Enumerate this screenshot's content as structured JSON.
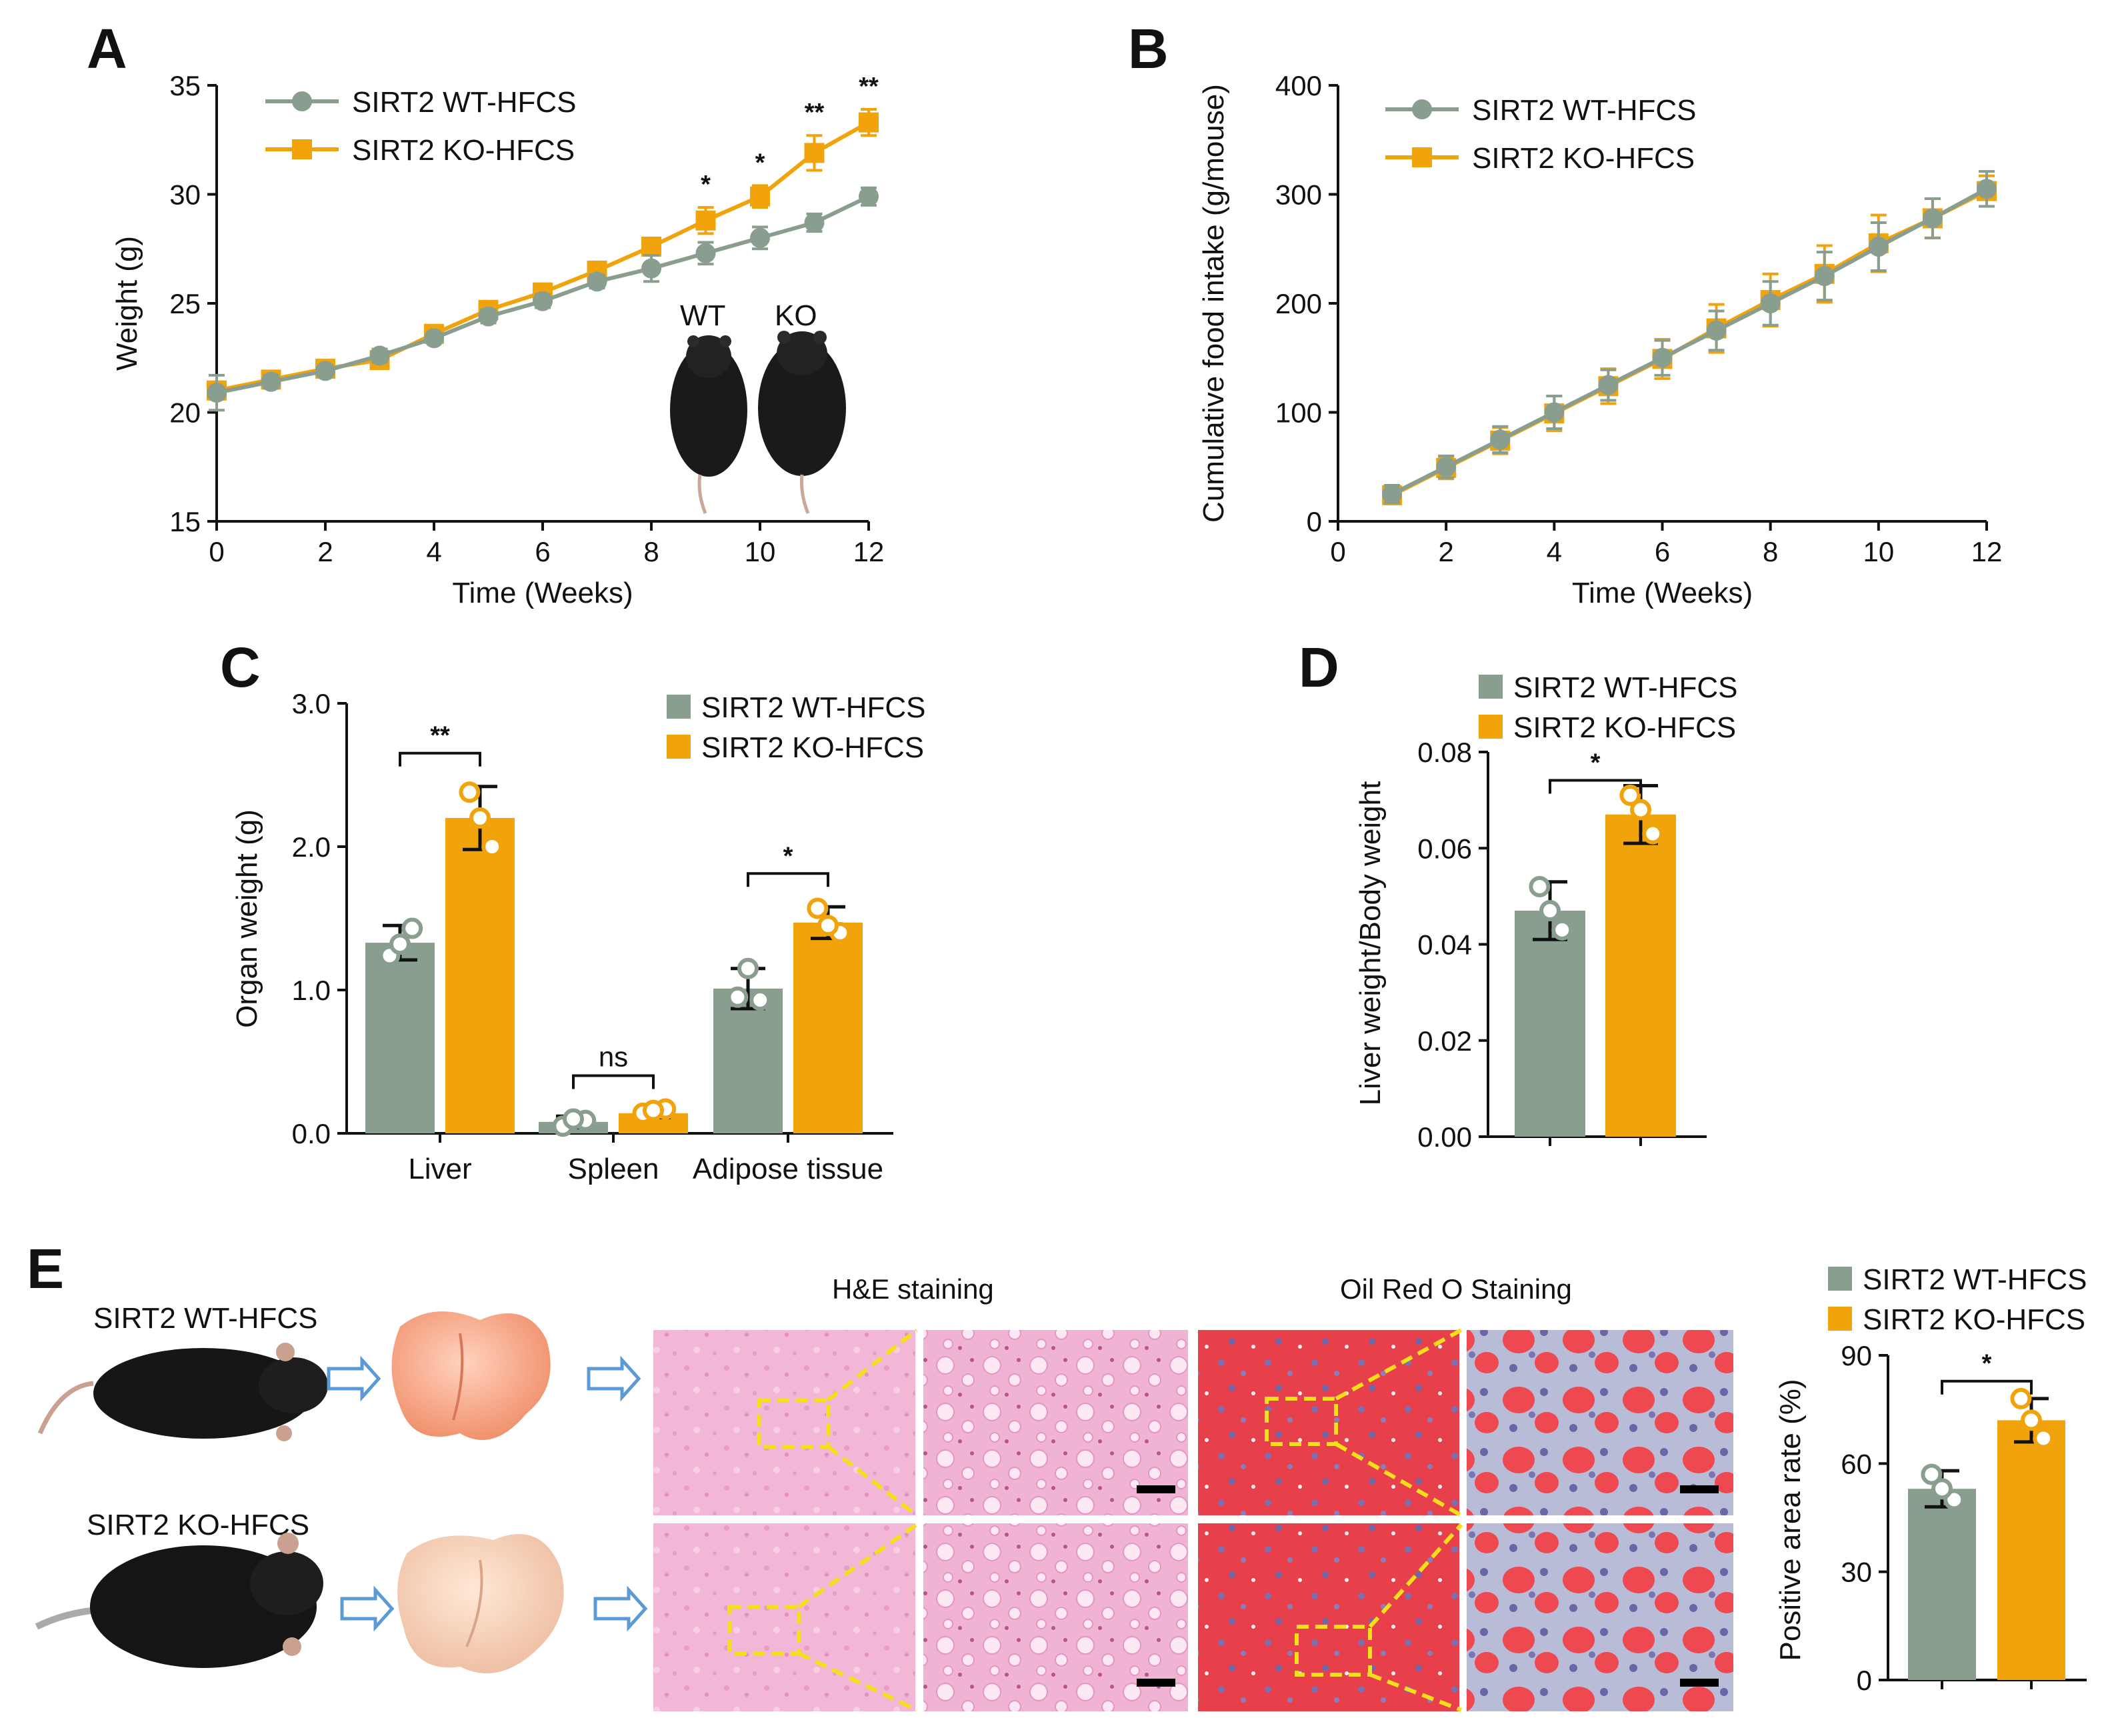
{
  "colors": {
    "wt": "#8a9e8f",
    "ko": "#f0a30a",
    "arrow": "#5b9bd5",
    "dash": "#f4e01a"
  },
  "panels": {
    "a": "A",
    "b": "B",
    "c": "C",
    "d": "D",
    "e": "E"
  },
  "legend": {
    "wt": "SIRT2 WT-HFCS",
    "ko": "SIRT2 KO-HFCS"
  },
  "chart_data": [
    {
      "id": "A",
      "type": "line",
      "xlabel": "Time (Weeks)",
      "ylabel": "Weight (g)",
      "xlim": [
        0,
        12
      ],
      "ylim": [
        15,
        35
      ],
      "xticks": [
        0,
        2,
        4,
        6,
        8,
        10,
        12
      ],
      "yticks": [
        15,
        20,
        25,
        30,
        35
      ],
      "x": [
        0,
        1,
        2,
        3,
        4,
        5,
        6,
        7,
        8,
        9,
        10,
        11,
        12
      ],
      "series": [
        {
          "name": "SIRT2 WT-HFCS",
          "marker": "circle",
          "values": [
            20.9,
            21.4,
            21.9,
            22.6,
            23.4,
            24.4,
            25.1,
            26.0,
            26.6,
            27.3,
            28.0,
            28.7,
            29.9
          ],
          "errors": [
            0.8,
            0.3,
            0.2,
            0.3,
            0.2,
            0.3,
            0.3,
            0.3,
            0.6,
            0.5,
            0.5,
            0.4,
            0.4
          ]
        },
        {
          "name": "SIRT2 KO-HFCS",
          "marker": "square",
          "values": [
            21.0,
            21.5,
            22.0,
            22.4,
            23.6,
            24.7,
            25.5,
            26.5,
            27.6,
            28.8,
            29.9,
            31.9,
            33.3
          ],
          "errors": [
            0.4,
            0.3,
            0.2,
            0.3,
            0.2,
            0.3,
            0.2,
            0.3,
            0.3,
            0.6,
            0.5,
            0.8,
            0.6
          ]
        }
      ],
      "significance": [
        {
          "x": 9,
          "label": "*"
        },
        {
          "x": 10,
          "label": "*"
        },
        {
          "x": 11,
          "label": "**"
        },
        {
          "x": 12,
          "label": "**"
        }
      ],
      "photo_labels": [
        "WT",
        "KO"
      ]
    },
    {
      "id": "B",
      "type": "line",
      "xlabel": "Time (Weeks)",
      "ylabel": "Cumulative food intake (g/mouse)",
      "xlim": [
        0,
        12
      ],
      "ylim": [
        0,
        400
      ],
      "xticks": [
        0,
        2,
        4,
        6,
        8,
        10,
        12
      ],
      "yticks": [
        0,
        100,
        200,
        300,
        400
      ],
      "x": [
        1,
        2,
        3,
        4,
        5,
        6,
        7,
        8,
        9,
        10,
        11,
        12
      ],
      "series": [
        {
          "name": "SIRT2 WT-HFCS",
          "marker": "circle",
          "values": [
            25,
            50,
            75,
            100,
            125,
            150,
            175,
            200,
            225,
            252,
            278,
            305
          ],
          "errors": [
            8,
            10,
            12,
            15,
            14,
            16,
            18,
            20,
            22,
            22,
            18,
            16
          ]
        },
        {
          "name": "SIRT2 KO-HFCS",
          "marker": "square",
          "values": [
            24,
            49,
            74,
            99,
            124,
            149,
            177,
            203,
            227,
            255,
            278,
            303
          ],
          "errors": [
            8,
            10,
            12,
            16,
            16,
            18,
            22,
            24,
            26,
            26,
            18,
            14
          ]
        }
      ]
    },
    {
      "id": "C",
      "type": "bar",
      "ylabel": "Organ weight (g)",
      "ylim": [
        0,
        3
      ],
      "yticks": [
        0,
        1,
        2,
        3
      ],
      "ytick_labels": [
        "0.0",
        "1.0",
        "2.0",
        "3.0"
      ],
      "categories": [
        "Liver",
        "Spleen",
        "Adipose tissue"
      ],
      "series": [
        {
          "name": "SIRT2 WT-HFCS",
          "values": [
            1.33,
            0.08,
            1.01
          ],
          "errors": [
            0.12,
            0.04,
            0.14
          ],
          "points": [
            [
              1.24,
              1.43,
              1.32
            ],
            [
              0.05,
              0.09,
              0.1
            ],
            [
              0.95,
              0.93,
              1.15
            ]
          ]
        },
        {
          "name": "SIRT2 KO-HFCS",
          "values": [
            2.2,
            0.14,
            1.47
          ],
          "errors": [
            0.22,
            0.03,
            0.11
          ],
          "points": [
            [
              2.38,
              2.0,
              2.2
            ],
            [
              0.14,
              0.17,
              0.16
            ],
            [
              1.57,
              1.4,
              1.45
            ]
          ]
        }
      ],
      "significance": [
        "**",
        "ns",
        "*"
      ]
    },
    {
      "id": "D",
      "type": "bar",
      "ylabel": "Liver weight/Body weight",
      "ylim": [
        0,
        0.08
      ],
      "yticks": [
        0,
        0.02,
        0.04,
        0.06,
        0.08
      ],
      "ytick_labels": [
        "0.00",
        "0.02",
        "0.04",
        "0.06",
        "0.08"
      ],
      "categories": [
        "SIRT2 WT-HFCS",
        "SIRT2 KO-HFCS"
      ],
      "values": [
        0.047,
        0.067
      ],
      "errors": [
        0.006,
        0.006
      ],
      "points": [
        [
          0.052,
          0.043,
          0.047
        ],
        [
          0.071,
          0.063,
          0.068
        ]
      ],
      "significance": "*"
    },
    {
      "id": "E",
      "type": "bar",
      "ylabel": "Positive area rate (%)",
      "ylim": [
        0,
        90
      ],
      "yticks": [
        0,
        30,
        60,
        90
      ],
      "ytick_labels": [
        "0",
        "30",
        "60",
        "90"
      ],
      "categories": [
        "SIRT2 WT-HFCS",
        "SIRT2 KO-HFCS"
      ],
      "values": [
        53,
        72
      ],
      "errors": [
        5,
        6
      ],
      "points": [
        [
          57,
          50,
          53
        ],
        [
          78,
          67,
          72
        ]
      ],
      "significance": "*"
    }
  ],
  "panel_e": {
    "row_labels": [
      "SIRT2 WT-HFCS",
      "SIRT2 KO-HFCS"
    ],
    "he_title": "H&E staining",
    "oro_title": "Oil Red O Staining"
  }
}
